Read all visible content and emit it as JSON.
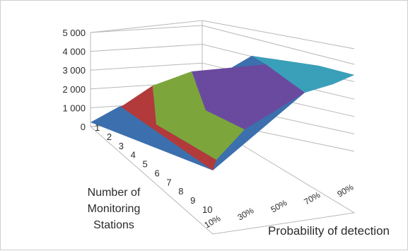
{
  "chart_data": {
    "type": "surface",
    "z_axis": {
      "ticks": [
        "0",
        "1 000",
        "2 000",
        "3 000",
        "4 000",
        "5 000"
      ],
      "range": [
        0,
        5000
      ]
    },
    "stations_axis": {
      "title": [
        "Number of",
        "Monitoring",
        "Stations"
      ],
      "ticks": [
        "1",
        "2",
        "3",
        "4",
        "5",
        "6",
        "7",
        "8",
        "9",
        "10"
      ]
    },
    "probability_axis": {
      "title": "Probability of detection",
      "ticks": [
        "10%",
        "30%",
        "50%",
        "70%",
        "90%"
      ]
    },
    "bands": [
      {
        "range": "0-1000",
        "color": "#3c6fae"
      },
      {
        "range": "1000-2000",
        "color": "#b33a3a"
      },
      {
        "range": "2000-3000",
        "color": "#7ca63c"
      },
      {
        "range": "3000-4000",
        "color": "#6a4a9e"
      },
      {
        "range": "4000-5000",
        "color": "#3a9fb8"
      }
    ],
    "grid": true,
    "legend": "none"
  }
}
